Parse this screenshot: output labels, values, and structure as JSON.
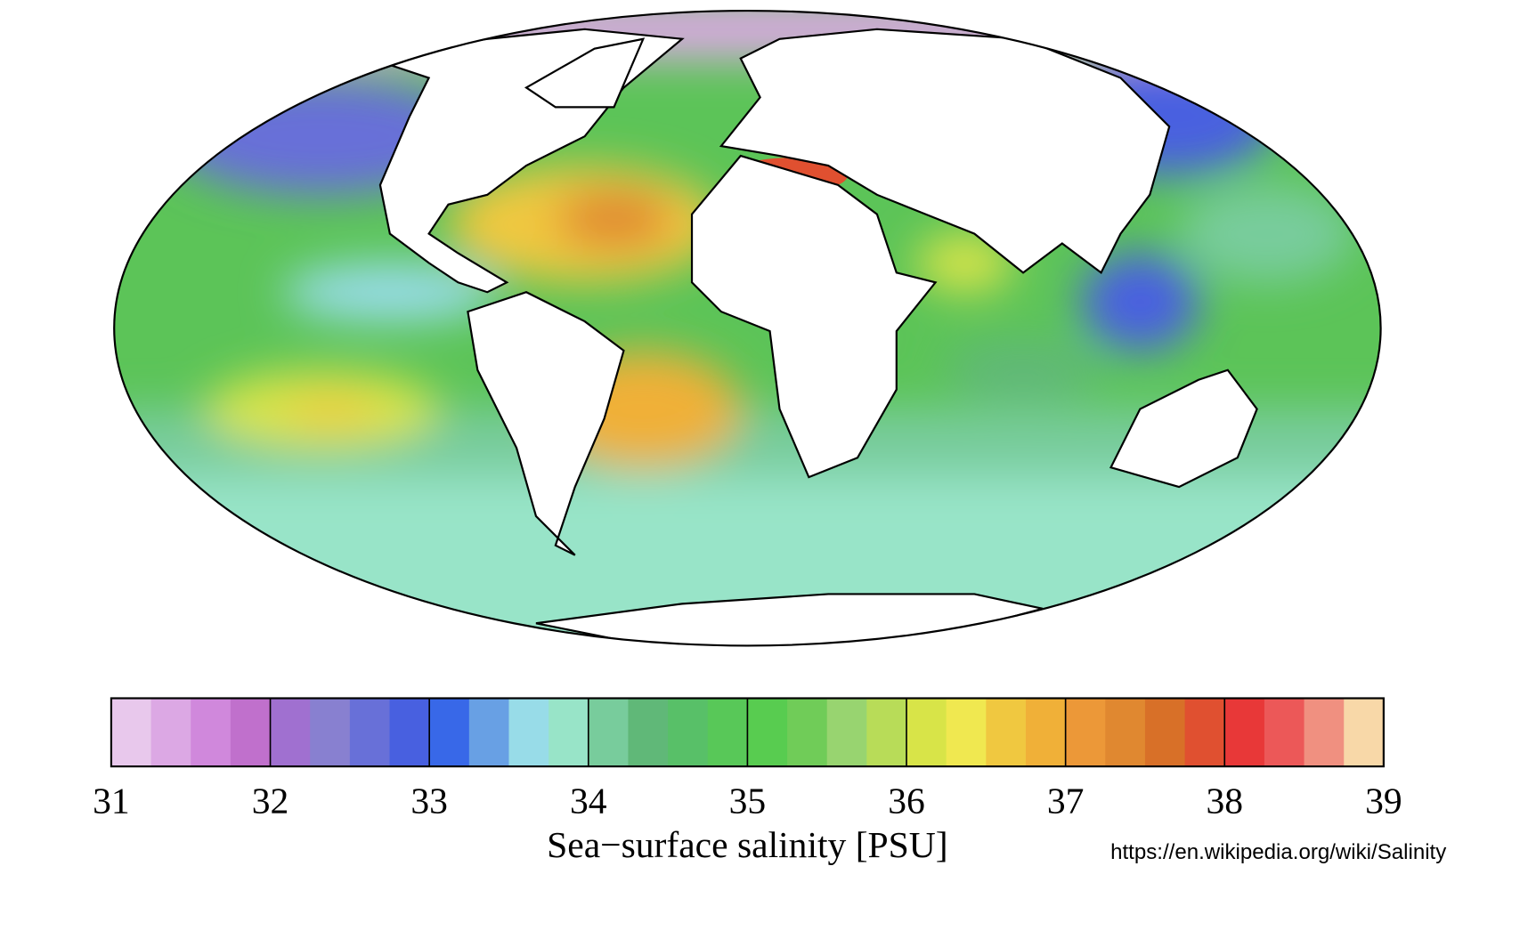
{
  "colorbar": {
    "lim": [
      31,
      39
    ],
    "ticks": [
      31,
      32,
      33,
      34,
      35,
      36,
      37,
      38,
      39
    ],
    "colors": [
      "#e8c8ec",
      "#dca8e4",
      "#d088dc",
      "#c070cc",
      "#a070d0",
      "#8880d0",
      "#6870d8",
      "#4860e0",
      "#3868e8",
      "#68a0e4",
      "#98dce8",
      "#98e4c8",
      "#78cc9c",
      "#60b878",
      "#58c068",
      "#58c858",
      "#58cc50",
      "#70cc58",
      "#98d470",
      "#b8dc58",
      "#d8e448",
      "#f0e850",
      "#f0c840",
      "#f0b038",
      "#ec9838",
      "#e08830",
      "#d87028",
      "#e05030",
      "#e83838",
      "#ec5858",
      "#f09080",
      "#f8d8a8"
    ],
    "label": "Sea−surface salinity [PSU]"
  },
  "source": "https://en.wikipedia.org/wiki/Salinity"
}
